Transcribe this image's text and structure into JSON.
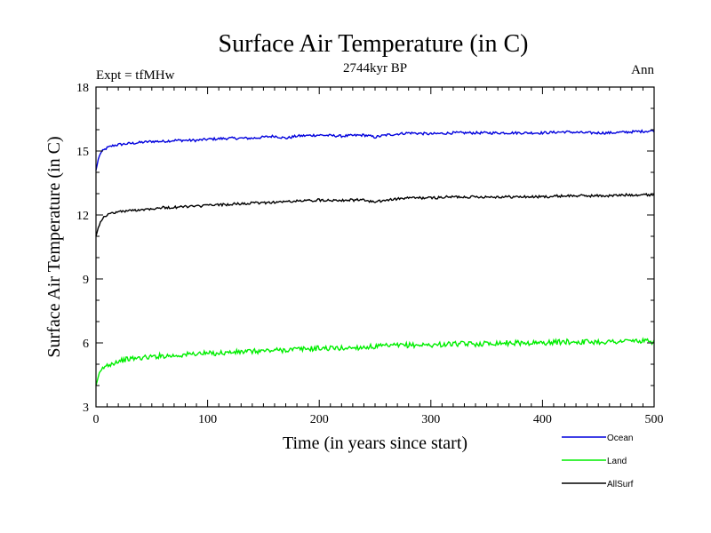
{
  "chart_data": {
    "type": "line",
    "title": "Surface Air Temperature (in C)",
    "subtitle": "2744kyr BP",
    "left_label": "Expt = tfMHw",
    "right_label": "Ann",
    "xlabel": "Time (in years since start)",
    "ylabel": "Surface Air Temperature (in C)",
    "xlim": [
      0,
      500
    ],
    "ylim": [
      3,
      18
    ],
    "x_ticks": [
      0,
      100,
      200,
      300,
      400,
      500
    ],
    "y_ticks": [
      3,
      6,
      9,
      12,
      15,
      18
    ],
    "x_tick_labels": [
      "0",
      "100",
      "200",
      "300",
      "400",
      "500"
    ],
    "y_tick_labels": [
      "3",
      "6",
      "9",
      "12",
      "15",
      "18"
    ],
    "grid": false,
    "legend_position": "bottom-right",
    "series": [
      {
        "name": "Ocean",
        "color": "#0000dd",
        "x": [
          0,
          2,
          4,
          6,
          10,
          15,
          20,
          30,
          40,
          50,
          60,
          70,
          80,
          90,
          100,
          120,
          140,
          160,
          170,
          180,
          200,
          220,
          240,
          250,
          260,
          280,
          300,
          320,
          340,
          360,
          380,
          400,
          420,
          440,
          460,
          480,
          500
        ],
        "values": [
          14.1,
          14.6,
          14.9,
          15.0,
          15.15,
          15.25,
          15.3,
          15.35,
          15.4,
          15.45,
          15.45,
          15.5,
          15.5,
          15.5,
          15.55,
          15.6,
          15.6,
          15.7,
          15.6,
          15.7,
          15.75,
          15.7,
          15.75,
          15.65,
          15.75,
          15.85,
          15.8,
          15.85,
          15.85,
          15.85,
          15.85,
          15.85,
          15.9,
          15.85,
          15.85,
          15.9,
          15.95
        ]
      },
      {
        "name": "Land",
        "color": "#00ee00",
        "x": [
          0,
          2,
          4,
          6,
          10,
          15,
          20,
          30,
          40,
          50,
          60,
          70,
          80,
          90,
          100,
          120,
          140,
          160,
          180,
          200,
          220,
          240,
          260,
          280,
          300,
          320,
          340,
          360,
          380,
          400,
          420,
          440,
          460,
          480,
          500
        ],
        "values": [
          4.0,
          4.4,
          4.6,
          4.8,
          4.95,
          5.05,
          5.15,
          5.25,
          5.3,
          5.35,
          5.4,
          5.4,
          5.45,
          5.5,
          5.5,
          5.55,
          5.6,
          5.65,
          5.7,
          5.75,
          5.75,
          5.8,
          5.85,
          5.9,
          5.9,
          5.95,
          5.95,
          6.0,
          6.0,
          6.0,
          6.05,
          6.05,
          6.05,
          6.1,
          6.05
        ]
      },
      {
        "name": "AllSurf",
        "color": "#000000",
        "x": [
          0,
          2,
          4,
          6,
          10,
          15,
          20,
          30,
          40,
          50,
          60,
          70,
          80,
          90,
          100,
          120,
          140,
          160,
          180,
          200,
          220,
          240,
          250,
          260,
          280,
          300,
          320,
          340,
          360,
          380,
          400,
          420,
          440,
          460,
          480,
          500
        ],
        "values": [
          11.0,
          11.4,
          11.7,
          11.85,
          12.0,
          12.1,
          12.15,
          12.2,
          12.25,
          12.3,
          12.35,
          12.35,
          12.4,
          12.4,
          12.45,
          12.5,
          12.55,
          12.6,
          12.65,
          12.7,
          12.7,
          12.7,
          12.6,
          12.7,
          12.8,
          12.8,
          12.85,
          12.85,
          12.85,
          12.85,
          12.85,
          12.9,
          12.9,
          12.9,
          12.95,
          12.95
        ]
      }
    ]
  }
}
